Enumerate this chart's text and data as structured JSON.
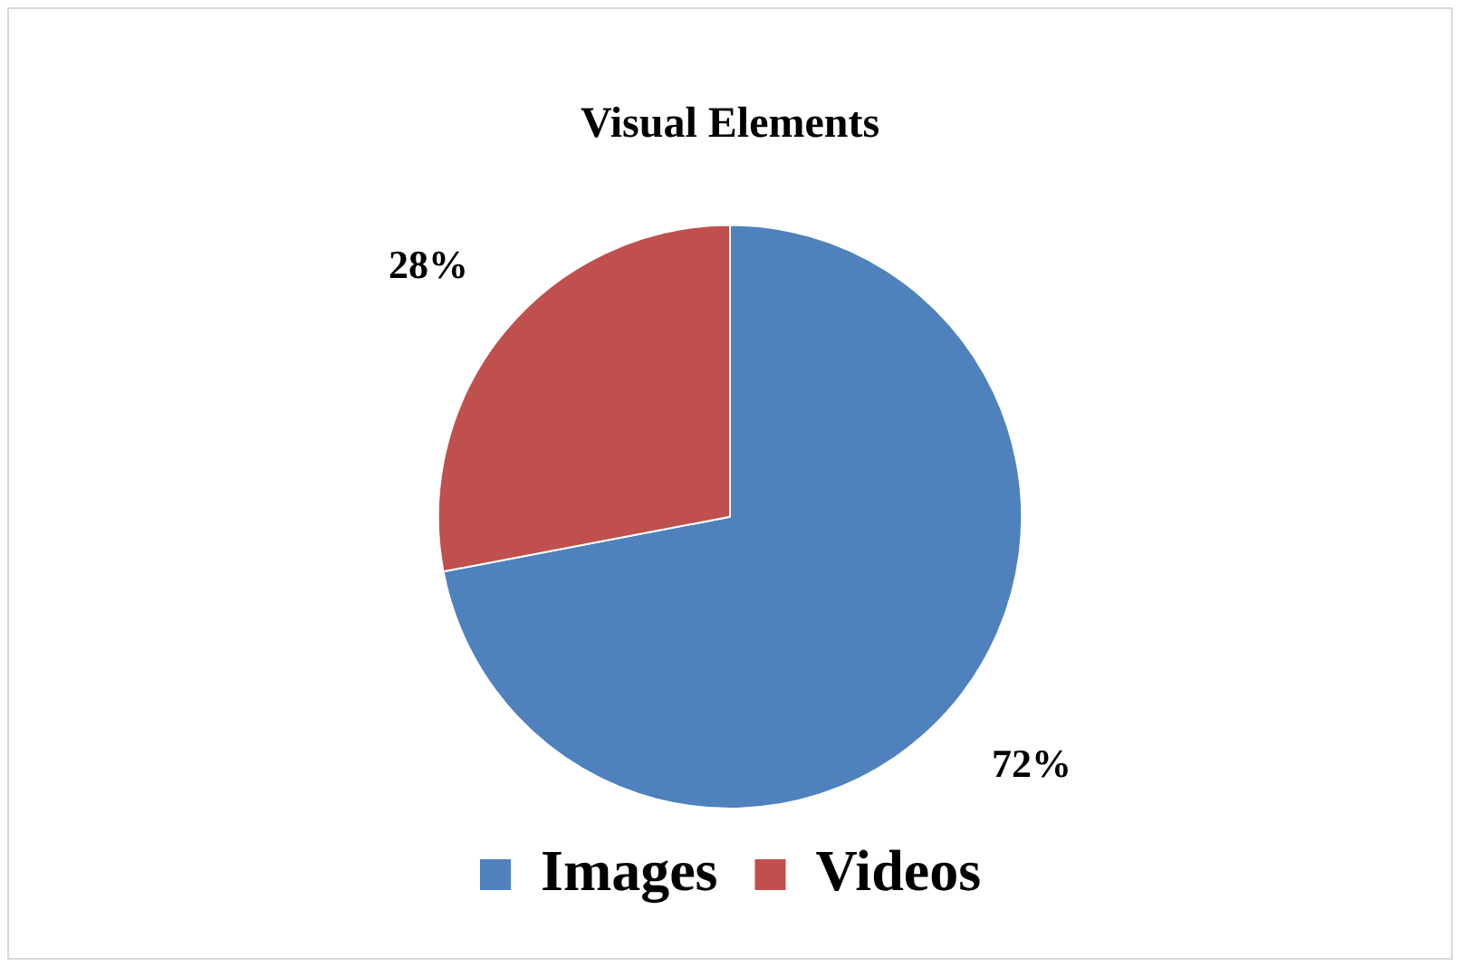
{
  "chart_data": {
    "type": "pie",
    "title": "Visual Elements",
    "categories": [
      "Images",
      "Videos"
    ],
    "values": [
      72,
      28
    ],
    "colors": [
      "#4f81bd",
      "#c0504d"
    ],
    "value_labels": [
      "72%",
      "28%"
    ],
    "legend": "bottom"
  }
}
